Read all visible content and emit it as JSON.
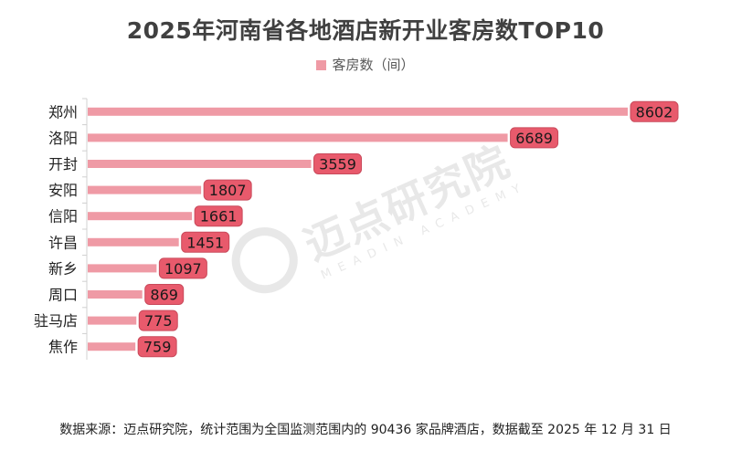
{
  "chart_data": {
    "type": "bar",
    "orientation": "horizontal",
    "title": "2025年河南省各地酒店新开业客房数TOP10",
    "legend": [
      "客房数（间）"
    ],
    "legend_position": "top",
    "categories": [
      "郑州",
      "洛阳",
      "开封",
      "安阳",
      "信阳",
      "许昌",
      "新乡",
      "周口",
      "驻马店",
      "焦作"
    ],
    "series": [
      {
        "name": "客房数（间）",
        "values": [
          8602,
          6689,
          3559,
          1807,
          1661,
          1451,
          1097,
          869,
          775,
          759
        ]
      }
    ],
    "xlim": [
      0,
      9000
    ],
    "grid": false,
    "colors": {
      "bar": "#ef9aa5",
      "label_bg": "#e85a6c",
      "label_border": "#c94a5b",
      "label_text": "#1a1a1a"
    }
  },
  "watermark": {
    "cn": "迈点研究院",
    "en": "MEADIN ACADEMY"
  },
  "footer": {
    "source": "数据来源：迈点研究院，统计范围为全国监测范围内的 90436 家品牌酒店，数据截至 2025 年 12 月 31 日"
  }
}
